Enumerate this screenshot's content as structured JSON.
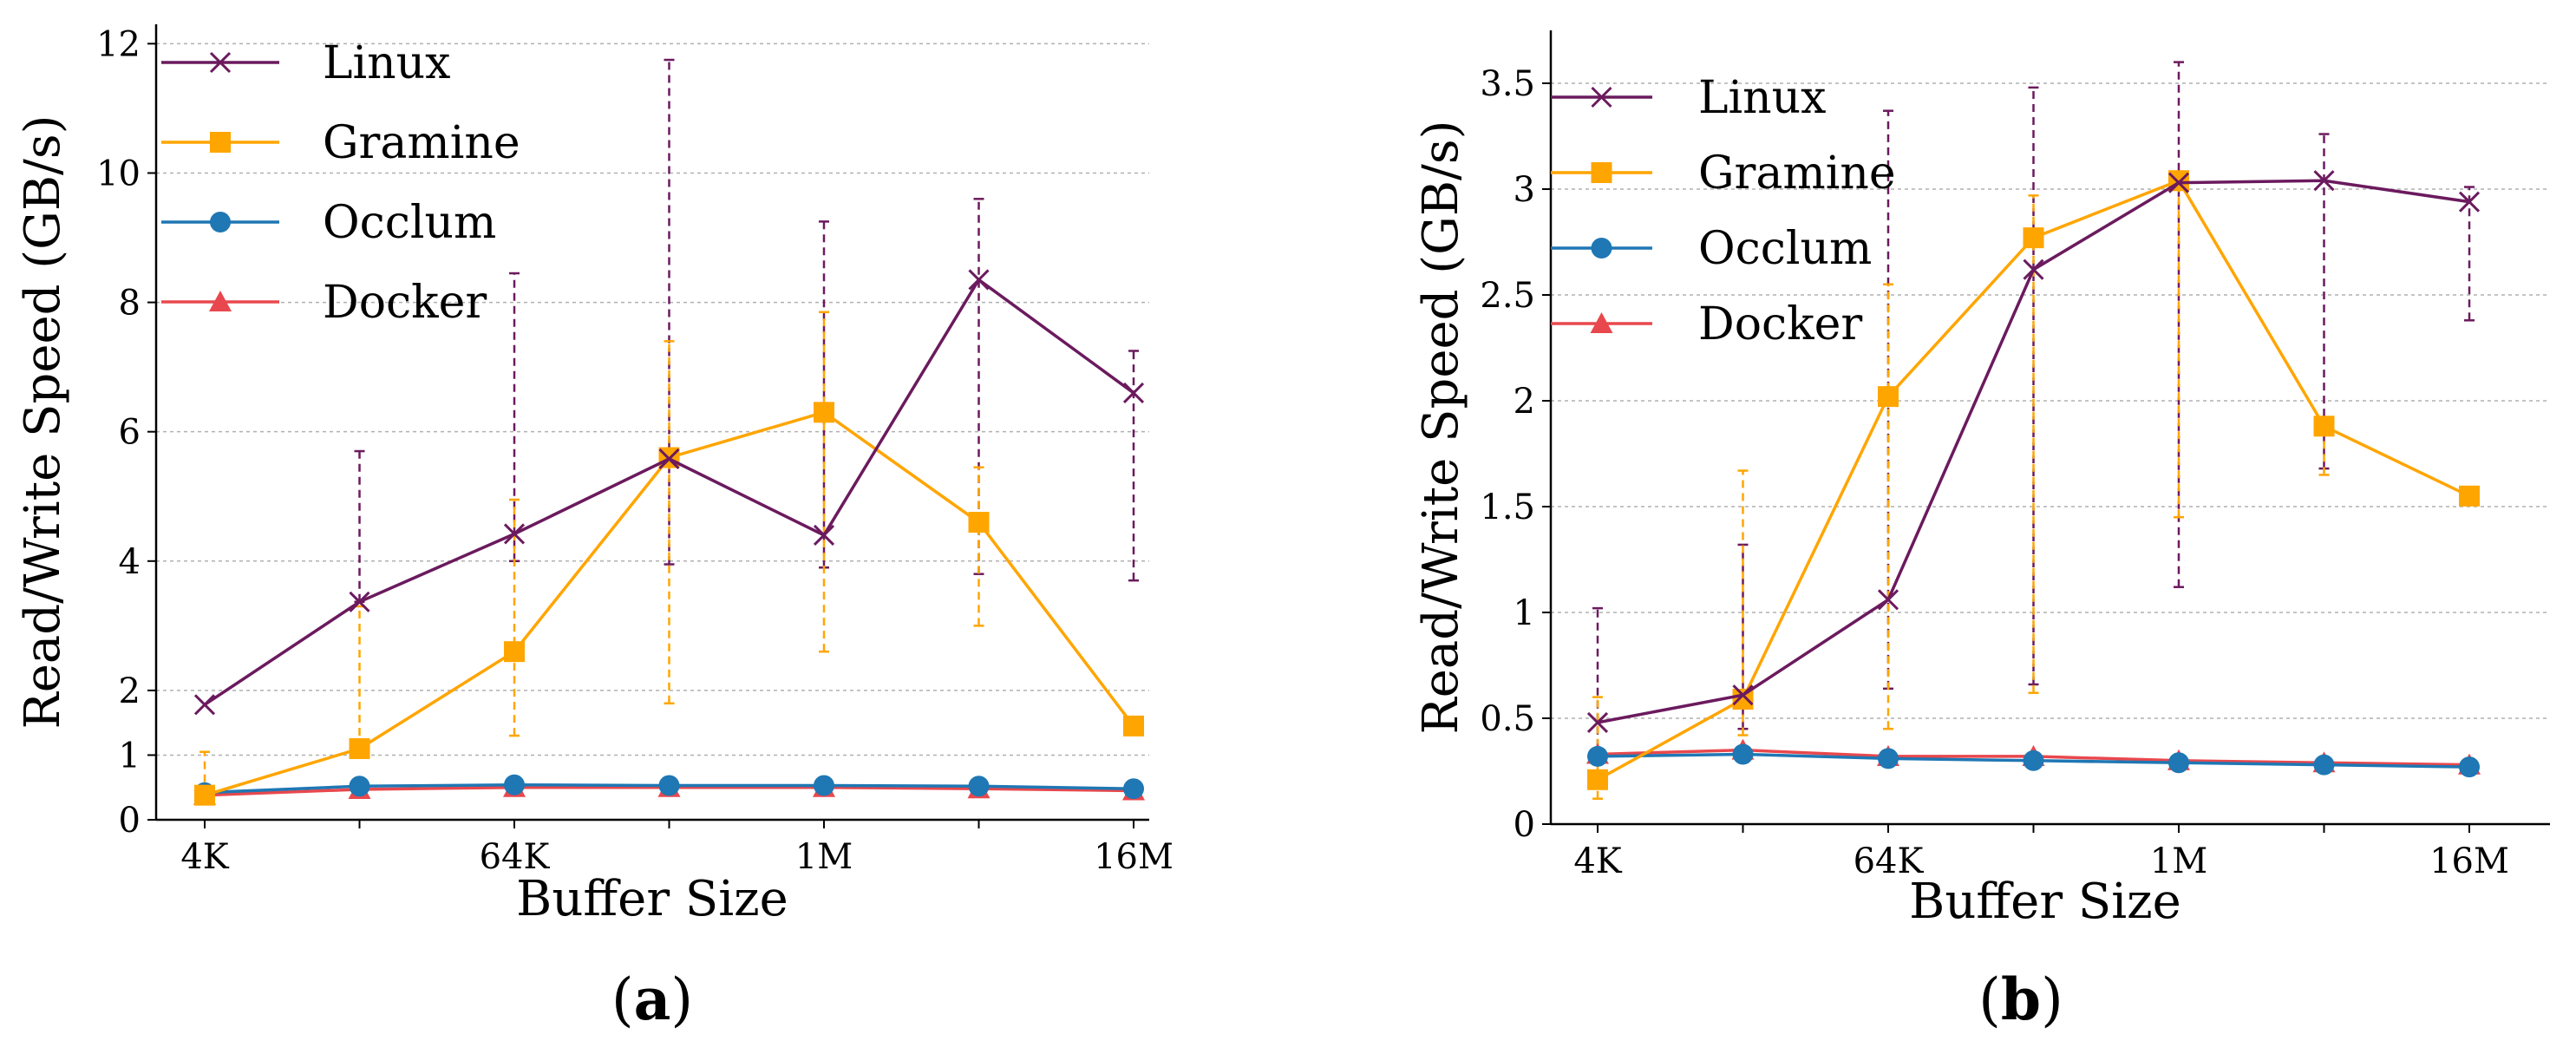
{
  "chart_data": [
    {
      "panel": "a",
      "panel_label": {
        "open": "(",
        "letter": "a",
        "close": ")"
      },
      "type": "line",
      "xlabel": "Buffer Size",
      "ylabel": "Read/Write Speed (GB/s)",
      "ylim": [
        0,
        12.3
      ],
      "grid": "horizontal dashed",
      "legend_placement": "top-left",
      "x_ticks": [
        {
          "pos": 0,
          "label": "4K"
        },
        {
          "pos": 2,
          "label": "64K"
        },
        {
          "pos": 4,
          "label": "1M"
        },
        {
          "pos": 6,
          "label": "16M"
        }
      ],
      "y_ticks": [
        {
          "v": 0,
          "label": "0"
        },
        {
          "v": 1,
          "label": "1"
        },
        {
          "v": 2,
          "label": "2"
        },
        {
          "v": 4,
          "label": "4"
        },
        {
          "v": 6,
          "label": "6"
        },
        {
          "v": 8,
          "label": "8"
        },
        {
          "v": 10,
          "label": "10"
        },
        {
          "v": 12,
          "label": "12"
        }
      ],
      "series": [
        {
          "name": "Linux",
          "color": "#6b1a5e",
          "marker": "x",
          "values": [
            1.78,
            3.37,
            4.42,
            5.58,
            4.4,
            8.35,
            6.6
          ],
          "err": [
            [
              1.78,
              1.78
            ],
            [
              3.37,
              5.7
            ],
            [
              4.0,
              8.45
            ],
            [
              3.95,
              11.75
            ],
            [
              3.9,
              9.25
            ],
            [
              3.8,
              9.6
            ],
            [
              3.7,
              7.25
            ]
          ]
        },
        {
          "name": "Gramine",
          "color": "#ffa500",
          "marker": "square",
          "values": [
            0.38,
            1.1,
            2.6,
            5.6,
            6.3,
            4.6,
            1.45
          ],
          "err": [
            [
              0.38,
              1.05
            ],
            [
              1.1,
              3.3
            ],
            [
              1.3,
              4.95
            ],
            [
              1.8,
              7.4
            ],
            [
              2.6,
              7.85
            ],
            [
              3.0,
              5.45
            ],
            [
              1.45,
              1.45
            ]
          ]
        },
        {
          "name": "Occlum",
          "color": "#1f77b4",
          "marker": "circle",
          "values": [
            0.42,
            0.52,
            0.54,
            0.53,
            0.53,
            0.52,
            0.48
          ]
        },
        {
          "name": "Docker",
          "color": "#e8484d",
          "marker": "triangle",
          "values": [
            0.38,
            0.47,
            0.5,
            0.5,
            0.5,
            0.48,
            0.45
          ]
        }
      ]
    },
    {
      "panel": "b",
      "panel_label": {
        "open": "(",
        "letter": "b",
        "close": ")"
      },
      "type": "line",
      "xlabel": "Buffer Size",
      "ylabel": "Read/Write Speed (GB/s)",
      "ylim": [
        0,
        3.75
      ],
      "grid": "horizontal dashed",
      "legend_placement": "top-left",
      "x_ticks": [
        {
          "pos": 0,
          "label": "4K"
        },
        {
          "pos": 2,
          "label": "64K"
        },
        {
          "pos": 4,
          "label": "1M"
        },
        {
          "pos": 6,
          "label": "16M"
        }
      ],
      "y_ticks": [
        {
          "v": 0,
          "label": "0"
        },
        {
          "v": 0.5,
          "label": "0.5"
        },
        {
          "v": 1,
          "label": "1"
        },
        {
          "v": 1.5,
          "label": "1.5"
        },
        {
          "v": 2,
          "label": "2"
        },
        {
          "v": 2.5,
          "label": "2.5"
        },
        {
          "v": 3,
          "label": "3"
        },
        {
          "v": 3.5,
          "label": "3.5"
        }
      ],
      "series": [
        {
          "name": "Linux",
          "color": "#6b1a5e",
          "marker": "x",
          "values": [
            0.48,
            0.61,
            1.06,
            2.62,
            3.03,
            3.04,
            2.94
          ],
          "err": [
            [
              0.3,
              1.02
            ],
            [
              0.45,
              1.32
            ],
            [
              0.64,
              3.37
            ],
            [
              0.66,
              3.48
            ],
            [
              1.12,
              3.6
            ],
            [
              1.68,
              3.26
            ],
            [
              2.38,
              3.01
            ]
          ]
        },
        {
          "name": "Gramine",
          "color": "#ffa500",
          "marker": "square",
          "values": [
            0.21,
            0.59,
            2.02,
            2.77,
            3.04,
            1.88,
            1.55
          ],
          "err": [
            [
              0.12,
              0.6
            ],
            [
              0.42,
              1.67
            ],
            [
              0.45,
              2.55
            ],
            [
              0.62,
              2.97
            ],
            [
              1.45,
              3.03
            ],
            [
              1.65,
              1.88
            ],
            [
              1.55,
              1.55
            ]
          ]
        },
        {
          "name": "Occlum",
          "color": "#1f77b4",
          "marker": "circle",
          "values": [
            0.32,
            0.33,
            0.31,
            0.3,
            0.29,
            0.28,
            0.27
          ]
        },
        {
          "name": "Docker",
          "color": "#e8484d",
          "marker": "triangle",
          "values": [
            0.33,
            0.35,
            0.32,
            0.32,
            0.3,
            0.29,
            0.28
          ]
        }
      ]
    }
  ]
}
